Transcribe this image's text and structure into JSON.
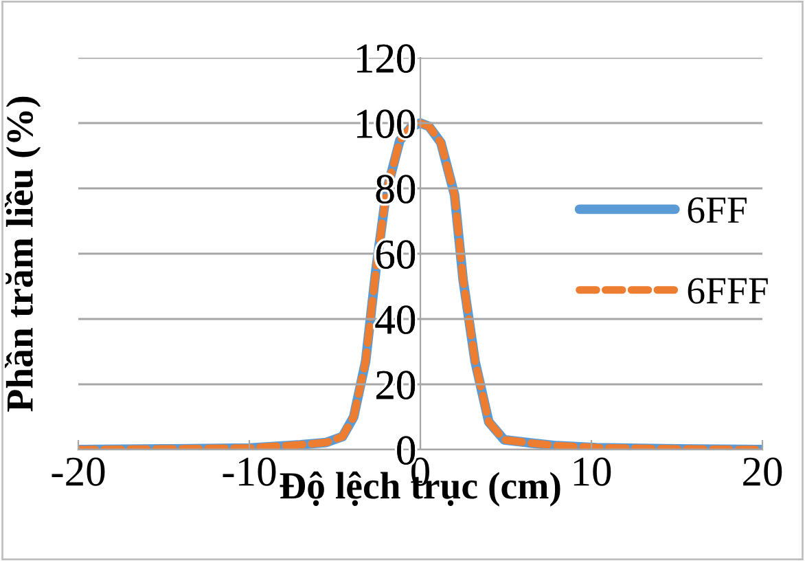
{
  "chart_data": {
    "type": "line",
    "xlabel": "Độ lệch trục (cm)",
    "ylabel": "Phần trăm liều (%)",
    "xlim": [
      -20,
      20
    ],
    "xticks": [
      -20,
      -10,
      0,
      10,
      20
    ],
    "ylim": [
      0,
      120
    ],
    "yticks": [
      0,
      20,
      40,
      60,
      80,
      100,
      120
    ],
    "grid": "y",
    "legend": "right",
    "marker": "none",
    "series": [
      {
        "name": "6FF",
        "color": "#5b9bd5",
        "line_style": "solid",
        "x": [
          -20,
          -15,
          -10,
          -7,
          -5.5,
          -4.55,
          -3.9,
          -3.2,
          -2.6,
          -2,
          -1.2,
          -0.5,
          0,
          0.5,
          1.2,
          2,
          2.5,
          3.2,
          4,
          4.9,
          6.5,
          8,
          10.3,
          15,
          20
        ],
        "values": [
          0,
          0.2,
          0.5,
          1.5,
          2.2,
          4,
          10,
          27,
          55,
          78.6,
          94.7,
          99,
          100,
          99,
          94,
          78,
          52,
          27,
          8.5,
          3,
          2,
          1.2,
          0.6,
          0.2,
          0
        ]
      },
      {
        "name": "6FFF",
        "color": "#ed7d31",
        "line_style": "dashed",
        "x": [
          -20,
          -15,
          -10,
          -7,
          -5.5,
          -4.55,
          -3.9,
          -3.2,
          -2.6,
          -2,
          -1.2,
          -0.5,
          0,
          0.5,
          1.2,
          2,
          2.5,
          3.2,
          4,
          4.9,
          6.5,
          8,
          10.3,
          15,
          20
        ],
        "values": [
          0,
          0.2,
          0.5,
          1.5,
          2.2,
          4,
          10,
          27,
          55,
          78.6,
          94.7,
          99,
          100,
          99,
          94,
          78,
          52,
          27,
          8.5,
          3,
          2,
          1.2,
          0.6,
          0.2,
          0
        ]
      }
    ]
  }
}
